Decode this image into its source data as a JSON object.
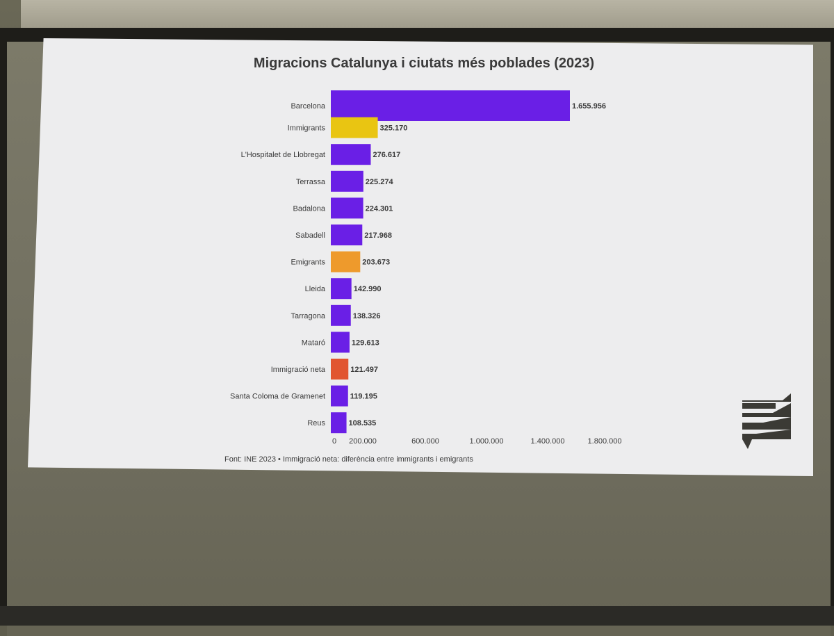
{
  "chart_data": {
    "type": "bar",
    "orientation": "horizontal",
    "title": "Migracions Catalunya i ciutats més poblades (2023)",
    "categories": [
      "Barcelona",
      "Immigrants",
      "L'Hospitalet de Llobregat",
      "Terrassa",
      "Badalona",
      "Sabadell",
      "Emigrants",
      "Lleida",
      "Tarragona",
      "Mataró",
      "Immigració neta",
      "Santa Coloma de Gramenet",
      "Reus"
    ],
    "values": [
      1655956,
      325170,
      276617,
      225274,
      224301,
      217968,
      203673,
      142990,
      138326,
      129613,
      121497,
      119195,
      108535
    ],
    "value_labels": [
      "1.655.956",
      "325.170",
      "276.617",
      "225.274",
      "224.301",
      "217.968",
      "203.673",
      "142.990",
      "138.326",
      "129.613",
      "121.497",
      "119.195",
      "108.535"
    ],
    "bar_colors": [
      "#6a1fe6",
      "#e9c512",
      "#6a1fe6",
      "#6a1fe6",
      "#6a1fe6",
      "#6a1fe6",
      "#ee9a2c",
      "#6a1fe6",
      "#6a1fe6",
      "#6a1fe6",
      "#e15530",
      "#6a1fe6",
      "#6a1fe6"
    ],
    "x_ticks": [
      0,
      200000,
      600000,
      1000000,
      1400000,
      1800000
    ],
    "x_tick_labels": [
      "0",
      "200.000",
      "600.000",
      "1.000.000",
      "1.400.000",
      "1.800.000"
    ],
    "xlim": [
      0,
      1800000
    ],
    "grid": false,
    "legend": "none"
  },
  "footer": {
    "source": "Font: INE 2023 • Immigració neta: diferència entre immigrants i emigrants"
  },
  "logo_icon": "stacked-stripes-logo-icon"
}
